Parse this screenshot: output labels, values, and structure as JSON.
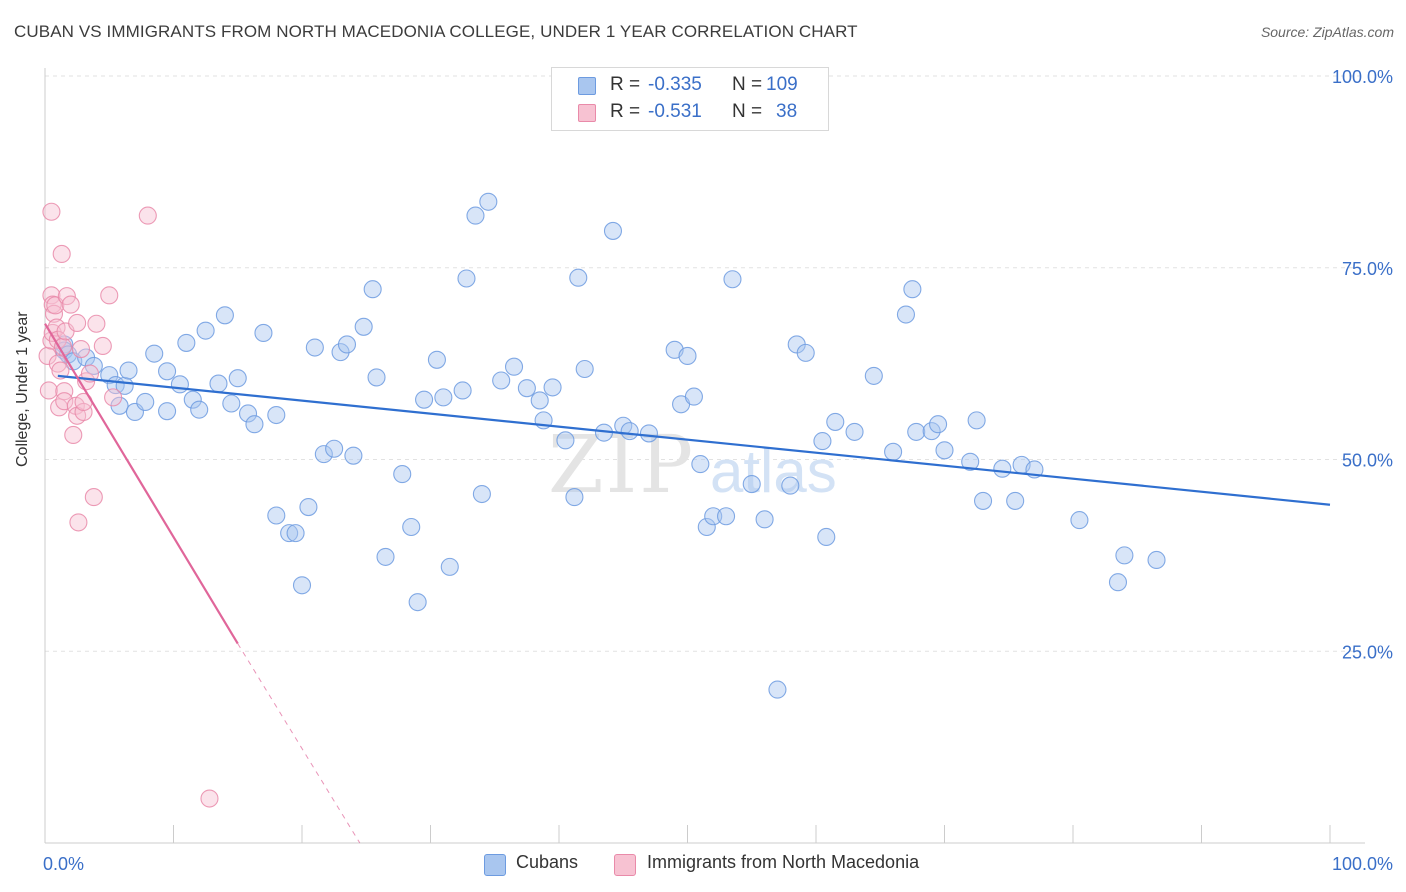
{
  "title": "CUBAN VS IMMIGRANTS FROM NORTH MACEDONIA COLLEGE, UNDER 1 YEAR CORRELATION CHART",
  "source": "Source: ZipAtlas.com",
  "watermark": {
    "zip": "ZIP",
    "atlas": "atlas"
  },
  "legend_top": {
    "rows": [
      {
        "r_label": "R =",
        "r_value": "-0.335",
        "n_label": "N =",
        "n_value": "109",
        "color": "#a9c6ef",
        "border": "#6d9be0"
      },
      {
        "r_label": "R =",
        "r_value": "-0.531",
        "n_label": "N =",
        "n_value": "38",
        "color": "#f7c2d2",
        "border": "#e98aa9"
      }
    ]
  },
  "legend_bottom": {
    "items": [
      {
        "label": "Cubans",
        "color": "#a9c6ef",
        "border": "#6d9be0"
      },
      {
        "label": "Immigrants from North Macedonia",
        "color": "#f7c2d2",
        "border": "#e98aa9"
      }
    ]
  },
  "chart_data": {
    "type": "scatter",
    "title": "CUBAN VS IMMIGRANTS FROM NORTH MACEDONIA COLLEGE, UNDER 1 YEAR CORRELATION CHART",
    "xlabel": "",
    "ylabel": "College, Under 1 year",
    "xlim": [
      0,
      100
    ],
    "ylim": [
      0,
      100
    ],
    "x_tick_labels": [
      "0.0%",
      "100.0%"
    ],
    "y_tick_labels": [
      "100.0%",
      "75.0%",
      "50.0%",
      "25.0%"
    ],
    "y_ticks": [
      100,
      75,
      50,
      25
    ],
    "grid": "horizontal dashed",
    "colors": {
      "cubans": "#6d9be0",
      "cubans_fill": "#a9c6ef",
      "macedonia": "#e98aa9",
      "macedonia_fill": "#f7c2d2",
      "cubans_line": "#2f6fd0",
      "macedonia_line": "#e0669a",
      "tick_label": "#3a6fc8"
    },
    "series": [
      {
        "name": "Cubans",
        "points": [
          [
            1.5,
            65.0
          ],
          [
            1.5,
            64.2
          ],
          [
            1.8,
            63.7
          ],
          [
            2.2,
            62.8
          ],
          [
            3.2,
            63.3
          ],
          [
            3.8,
            62.2
          ],
          [
            5.0,
            61.0
          ],
          [
            5.8,
            57.0
          ],
          [
            5.5,
            59.7
          ],
          [
            6.2,
            59.6
          ],
          [
            6.5,
            61.6
          ],
          [
            7.0,
            56.2
          ],
          [
            7.8,
            57.5
          ],
          [
            8.5,
            63.8
          ],
          [
            9.5,
            56.3
          ],
          [
            9.5,
            61.5
          ],
          [
            10.5,
            59.8
          ],
          [
            11.0,
            65.2
          ],
          [
            11.5,
            57.8
          ],
          [
            12.0,
            56.5
          ],
          [
            12.5,
            66.8
          ],
          [
            13.5,
            59.9
          ],
          [
            14.0,
            68.8
          ],
          [
            14.5,
            57.3
          ],
          [
            15.0,
            60.6
          ],
          [
            15.8,
            56.0
          ],
          [
            16.3,
            54.6
          ],
          [
            17.0,
            66.5
          ],
          [
            18.0,
            55.8
          ],
          [
            18.0,
            42.7
          ],
          [
            19.0,
            40.4
          ],
          [
            19.5,
            40.4
          ],
          [
            20.0,
            33.6
          ],
          [
            20.5,
            43.8
          ],
          [
            21.0,
            64.6
          ],
          [
            21.7,
            50.7
          ],
          [
            22.5,
            51.4
          ],
          [
            23.0,
            64.0
          ],
          [
            23.5,
            65.0
          ],
          [
            24.0,
            50.5
          ],
          [
            24.8,
            67.3
          ],
          [
            25.5,
            72.2
          ],
          [
            25.8,
            60.7
          ],
          [
            26.5,
            37.3
          ],
          [
            27.8,
            48.1
          ],
          [
            28.5,
            41.2
          ],
          [
            29.0,
            31.4
          ],
          [
            29.5,
            57.8
          ],
          [
            30.5,
            63.0
          ],
          [
            31.0,
            58.1
          ],
          [
            31.5,
            36.0
          ],
          [
            32.5,
            59.0
          ],
          [
            32.8,
            73.6
          ],
          [
            33.5,
            81.8
          ],
          [
            34.0,
            45.5
          ],
          [
            34.5,
            83.6
          ],
          [
            35.5,
            60.3
          ],
          [
            36.5,
            62.1
          ],
          [
            37.5,
            59.3
          ],
          [
            38.5,
            57.7
          ],
          [
            38.8,
            55.1
          ],
          [
            39.5,
            59.4
          ],
          [
            40.5,
            52.5
          ],
          [
            41.2,
            45.1
          ],
          [
            41.5,
            73.7
          ],
          [
            42.0,
            61.8
          ],
          [
            43.5,
            53.5
          ],
          [
            44.2,
            79.8
          ],
          [
            45.0,
            54.4
          ],
          [
            45.5,
            53.7
          ],
          [
            47.0,
            53.4
          ],
          [
            49.0,
            64.3
          ],
          [
            49.5,
            57.2
          ],
          [
            50.0,
            63.5
          ],
          [
            50.5,
            58.2
          ],
          [
            51.0,
            49.4
          ],
          [
            51.5,
            41.2
          ],
          [
            52.0,
            42.6
          ],
          [
            53.0,
            42.6
          ],
          [
            53.5,
            73.5
          ],
          [
            55.0,
            46.8
          ],
          [
            56.0,
            42.2
          ],
          [
            57.0,
            20.0
          ],
          [
            58.0,
            46.6
          ],
          [
            58.5,
            65.0
          ],
          [
            59.2,
            63.9
          ],
          [
            60.5,
            52.4
          ],
          [
            60.8,
            39.9
          ],
          [
            61.5,
            54.9
          ],
          [
            63.0,
            53.6
          ],
          [
            64.5,
            60.9
          ],
          [
            66.0,
            51.0
          ],
          [
            67.0,
            68.9
          ],
          [
            67.5,
            72.2
          ],
          [
            67.8,
            53.6
          ],
          [
            69.0,
            53.7
          ],
          [
            69.5,
            54.6
          ],
          [
            70.0,
            51.2
          ],
          [
            72.0,
            49.7
          ],
          [
            72.5,
            55.1
          ],
          [
            73.0,
            44.6
          ],
          [
            74.5,
            48.8
          ],
          [
            75.5,
            44.6
          ],
          [
            76.0,
            49.3
          ],
          [
            77.0,
            48.7
          ],
          [
            80.5,
            42.1
          ],
          [
            83.5,
            34.0
          ],
          [
            84.0,
            37.5
          ],
          [
            86.5,
            36.9
          ]
        ],
        "trend": {
          "x": [
            1.0,
            100.0
          ],
          "y": [
            60.9,
            44.1
          ]
        }
      },
      {
        "name": "Immigrants from North Macedonia",
        "points": [
          [
            0.2,
            63.5
          ],
          [
            0.3,
            59.0
          ],
          [
            0.5,
            65.5
          ],
          [
            0.6,
            66.5
          ],
          [
            0.5,
            71.4
          ],
          [
            0.6,
            70.2
          ],
          [
            0.7,
            69.0
          ],
          [
            0.8,
            70.1
          ],
          [
            0.9,
            67.2
          ],
          [
            1.0,
            65.6
          ],
          [
            1.0,
            62.5
          ],
          [
            1.1,
            56.8
          ],
          [
            1.2,
            61.6
          ],
          [
            1.3,
            76.8
          ],
          [
            1.4,
            64.7
          ],
          [
            1.5,
            58.9
          ],
          [
            1.5,
            57.6
          ],
          [
            1.6,
            66.7
          ],
          [
            1.7,
            71.3
          ],
          [
            2.0,
            70.2
          ],
          [
            2.2,
            53.2
          ],
          [
            2.4,
            57.0
          ],
          [
            2.5,
            55.7
          ],
          [
            2.5,
            67.8
          ],
          [
            2.6,
            41.8
          ],
          [
            2.8,
            64.4
          ],
          [
            3.0,
            56.2
          ],
          [
            3.0,
            57.5
          ],
          [
            3.2,
            60.2
          ],
          [
            3.5,
            61.2
          ],
          [
            3.8,
            45.1
          ],
          [
            4.0,
            67.7
          ],
          [
            4.5,
            64.8
          ],
          [
            5.0,
            71.4
          ],
          [
            5.3,
            58.1
          ],
          [
            0.5,
            82.3
          ],
          [
            8.0,
            81.8
          ],
          [
            12.8,
            5.8
          ]
        ],
        "trend": {
          "x": [
            0.0,
            15.0
          ],
          "y": [
            67.7,
            26.0
          ],
          "dashed_to": {
            "x": 24.5,
            "y": 0.0
          }
        }
      }
    ]
  }
}
